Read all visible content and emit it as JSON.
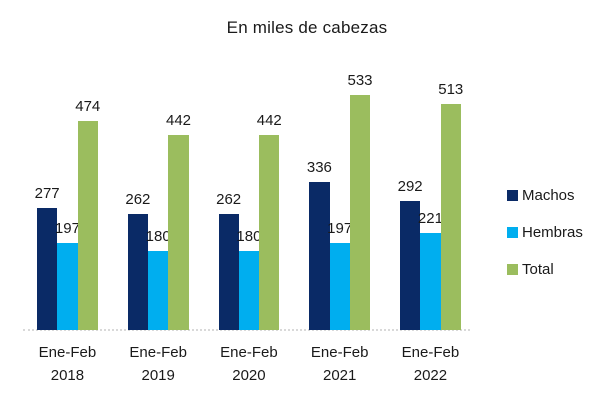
{
  "title": "En miles de cabezas",
  "chart_data": {
    "type": "bar",
    "title": "En miles de cabezas",
    "categories": [
      "Ene-Feb 2018",
      "Ene-Feb 2019",
      "Ene-Feb 2020",
      "Ene-Feb 2021",
      "Ene-Feb 2022"
    ],
    "series": [
      {
        "name": "Machos",
        "color": "#0a2a66",
        "values": [
          277,
          262,
          262,
          336,
          292
        ]
      },
      {
        "name": "Hembras",
        "color": "#00aeef",
        "values": [
          197,
          180,
          180,
          197,
          221
        ]
      },
      {
        "name": "Total",
        "color": "#9bbd5e",
        "values": [
          474,
          442,
          442,
          533,
          513
        ]
      }
    ],
    "xlabel": "",
    "ylabel": "",
    "ylim": [
      0,
      560
    ],
    "grid": false,
    "data_labels": true,
    "legend_position": "right",
    "axis_line_color": "#d9d9d9",
    "text_color": "#1a1a1a"
  }
}
